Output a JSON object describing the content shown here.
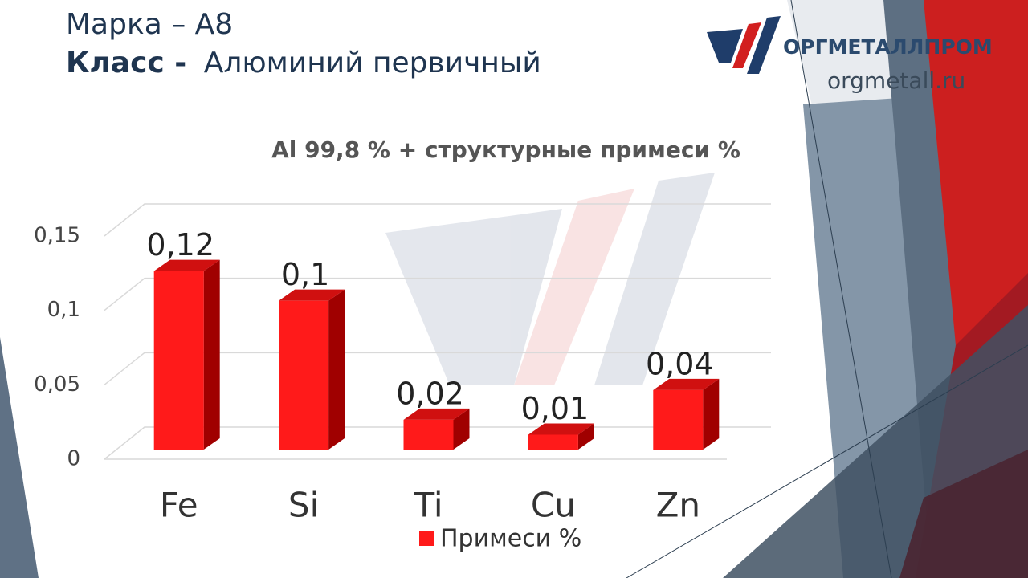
{
  "slide": {
    "brand_line": "Марка – А8",
    "class_label": "Класс -",
    "class_value": "Алюминий первичный",
    "logo_text": "ОРГМЕТАЛЛПРОМ",
    "site": "orgmetall.ru"
  },
  "chart_data": {
    "type": "bar3d",
    "title": "Al 99,8 % + структурные примеси %",
    "categories": [
      "Fe",
      "Si",
      "Ti",
      "Cu",
      "Zn"
    ],
    "series": [
      {
        "name": "Примеси %",
        "color": "#ff1a1a",
        "values": [
          0.12,
          0.1,
          0.02,
          0.01,
          0.04
        ],
        "value_labels": [
          "0,12",
          "0,1",
          "0,02",
          "0,01",
          "0,04"
        ]
      }
    ],
    "ylim": [
      0,
      0.15
    ],
    "yticks": [
      0,
      {
        "value": 0.05,
        "label": "0,05"
      },
      {
        "value": 0.1,
        "label": "0,1"
      },
      {
        "value": 0.15,
        "label": "0,15"
      }
    ],
    "grid": true,
    "legend": "bottom"
  }
}
